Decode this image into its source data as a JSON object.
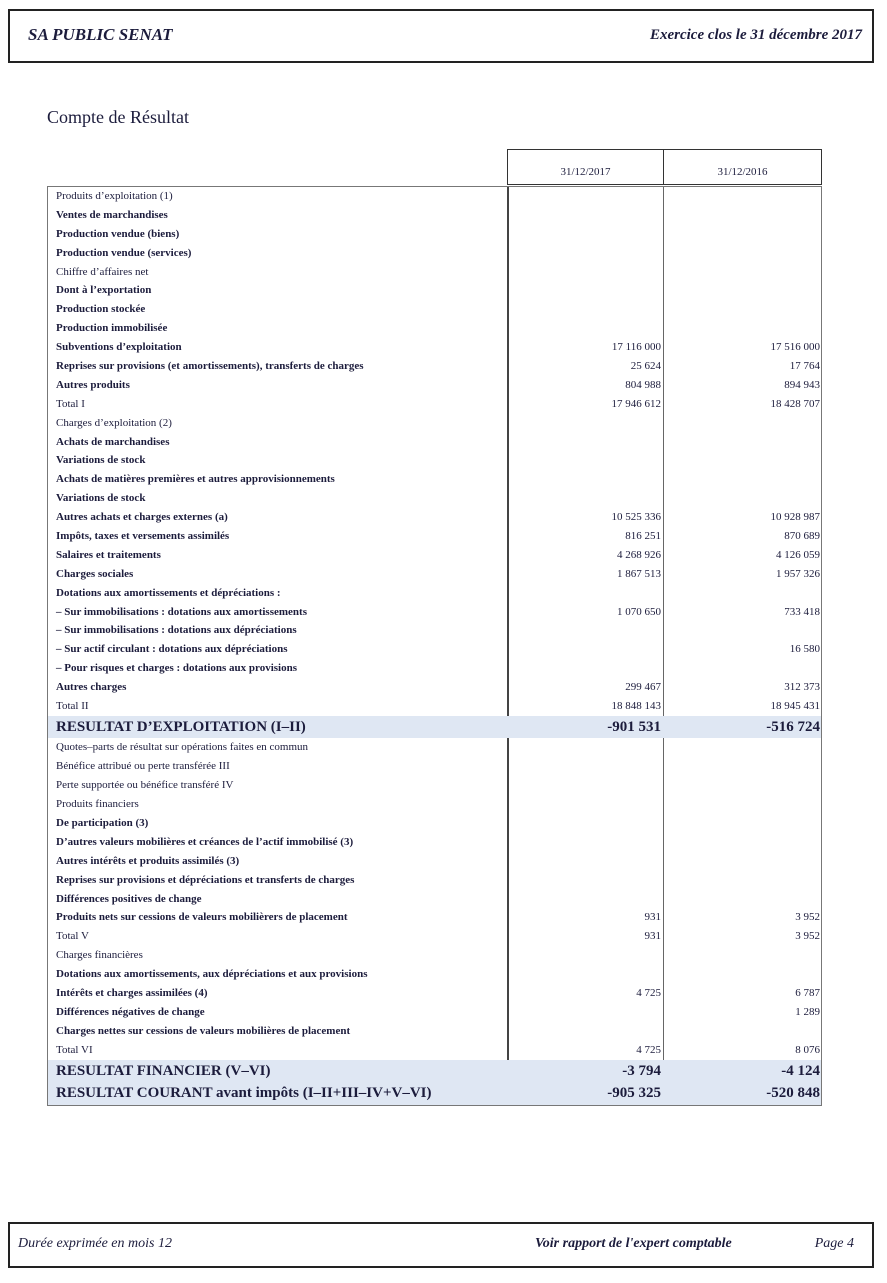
{
  "header": {
    "company": "SA PUBLIC SENAT",
    "period": "Exercice clos le 31 décembre 2017"
  },
  "title": "Compte de Résultat",
  "columns": [
    "31/12/2017",
    "31/12/2016"
  ],
  "rows": [
    {
      "label": "Produits d’exploitation (1)",
      "style": "n",
      "v1": "",
      "v2": ""
    },
    {
      "label": "Ventes de marchandises",
      "style": "b",
      "v1": "",
      "v2": ""
    },
    {
      "label": "Production vendue (biens)",
      "style": "b",
      "v1": "",
      "v2": ""
    },
    {
      "label": "Production vendue (services)",
      "style": "b",
      "v1": "",
      "v2": ""
    },
    {
      "label": "Chiffre d’affaires net",
      "style": "n",
      "v1": "",
      "v2": ""
    },
    {
      "label": "Dont à l’exportation",
      "style": "b",
      "v1": "",
      "v2": ""
    },
    {
      "label": "Production stockée",
      "style": "b",
      "v1": "",
      "v2": ""
    },
    {
      "label": "Production immobilisée",
      "style": "b",
      "v1": "",
      "v2": ""
    },
    {
      "label": "Subventions d’exploitation",
      "style": "b",
      "v1": "17 116 000",
      "v2": "17 516 000"
    },
    {
      "label": "Reprises sur provisions (et amortissements), transferts de charges",
      "style": "b",
      "v1": "25 624",
      "v2": "17 764"
    },
    {
      "label": "Autres produits",
      "style": "b",
      "v1": "804 988",
      "v2": "894 943"
    },
    {
      "label": "Total I",
      "style": "n",
      "v1": "17 946 612",
      "v2": "18 428 707"
    },
    {
      "label": "Charges d’exploitation (2)",
      "style": "n",
      "v1": "",
      "v2": ""
    },
    {
      "label": "Achats de marchandises",
      "style": "b",
      "v1": "",
      "v2": ""
    },
    {
      "label": "Variations de stock",
      "style": "b",
      "v1": "",
      "v2": ""
    },
    {
      "label": "Achats de matières premières et autres approvisionnements",
      "style": "b",
      "v1": "",
      "v2": ""
    },
    {
      "label": "Variations de stock",
      "style": "b",
      "v1": "",
      "v2": ""
    },
    {
      "label": "Autres achats et charges externes (a)",
      "style": "b",
      "v1": "10 525 336",
      "v2": "10 928 987"
    },
    {
      "label": "Impôts, taxes et versements assimilés",
      "style": "b",
      "v1": "816 251",
      "v2": "870 689"
    },
    {
      "label": "Salaires et traitements",
      "style": "b",
      "v1": "4 268 926",
      "v2": "4 126 059"
    },
    {
      "label": "Charges sociales",
      "style": "b",
      "v1": "1 867 513",
      "v2": "1 957 326"
    },
    {
      "label": "Dotations aux amortissements et dépréciations :",
      "style": "b",
      "v1": "",
      "v2": ""
    },
    {
      "label": "– Sur immobilisations : dotations aux amortissements",
      "style": "b",
      "v1": "1 070 650",
      "v2": "733 418"
    },
    {
      "label": "– Sur immobilisations : dotations aux dépréciations",
      "style": "b",
      "v1": "",
      "v2": ""
    },
    {
      "label": "– Sur actif circulant : dotations aux dépréciations",
      "style": "b",
      "v1": "",
      "v2": "16 580"
    },
    {
      "label": "– Pour risques et charges : dotations aux provisions",
      "style": "b",
      "v1": "",
      "v2": ""
    },
    {
      "label": "Autres charges",
      "style": "b",
      "v1": "299 467",
      "v2": "312 373"
    },
    {
      "label": "Total II",
      "style": "n",
      "v1": "18 848 143",
      "v2": "18 945 431"
    },
    {
      "label": "RESULTAT D’EXPLOITATION (I–II)",
      "style": "h",
      "v1": "-901 531",
      "v2": "-516 724"
    },
    {
      "label": "Quotes–parts de résultat sur opérations faites en commun",
      "style": "n",
      "v1": "",
      "v2": ""
    },
    {
      "label": "Bénéfice attribué ou perte transférée III",
      "style": "n",
      "v1": "",
      "v2": ""
    },
    {
      "label": "Perte supportée ou bénéfice transféré IV",
      "style": "n",
      "v1": "",
      "v2": ""
    },
    {
      "label": "Produits financiers",
      "style": "n",
      "v1": "",
      "v2": ""
    },
    {
      "label": "De participation (3)",
      "style": "b",
      "v1": "",
      "v2": ""
    },
    {
      "label": "D’autres valeurs mobilières et créances de l’actif immobilisé (3)",
      "style": "b",
      "v1": "",
      "v2": ""
    },
    {
      "label": "Autres intérêts et produits assimilés (3)",
      "style": "b",
      "v1": "",
      "v2": ""
    },
    {
      "label": "Reprises sur provisions et dépréciations et transferts de charges",
      "style": "b",
      "v1": "",
      "v2": ""
    },
    {
      "label": "Différences positives de change",
      "style": "b",
      "v1": "",
      "v2": ""
    },
    {
      "label": "Produits nets sur cessions de valeurs mobilièrers de placement",
      "style": "b",
      "v1": "931",
      "v2": "3 952"
    },
    {
      "label": "Total V",
      "style": "n",
      "v1": "931",
      "v2": "3 952"
    },
    {
      "label": "Charges financières",
      "style": "n",
      "v1": "",
      "v2": ""
    },
    {
      "label": "Dotations aux amortissements, aux dépréciations et aux provisions",
      "style": "b",
      "v1": "",
      "v2": ""
    },
    {
      "label": "Intérêts et charges assimilées (4)",
      "style": "b",
      "v1": "4 725",
      "v2": "6 787"
    },
    {
      "label": "Différences négatives de change",
      "style": "b",
      "v1": "",
      "v2": "1 289"
    },
    {
      "label": "Charges nettes sur cessions de valeurs mobilières de placement",
      "style": "b",
      "v1": "",
      "v2": ""
    },
    {
      "label": "Total VI",
      "style": "n",
      "v1": "4 725",
      "v2": "8 076"
    },
    {
      "label": "RESULTAT FINANCIER (V–VI)",
      "style": "h",
      "v1": "-3 794",
      "v2": "-4 124"
    },
    {
      "label": "RESULTAT COURANT avant impôts (I–II+III–IV+V–VI)",
      "style": "h",
      "v1": "-905 325",
      "v2": "-520 848"
    }
  ],
  "footer": {
    "duration": "Durée exprimée en mois 12",
    "note": "Voir rapport de l'expert comptable",
    "page": "Page 4"
  },
  "colors": {
    "text": "#1c1c3c",
    "highlight": "#dfe7f3"
  }
}
